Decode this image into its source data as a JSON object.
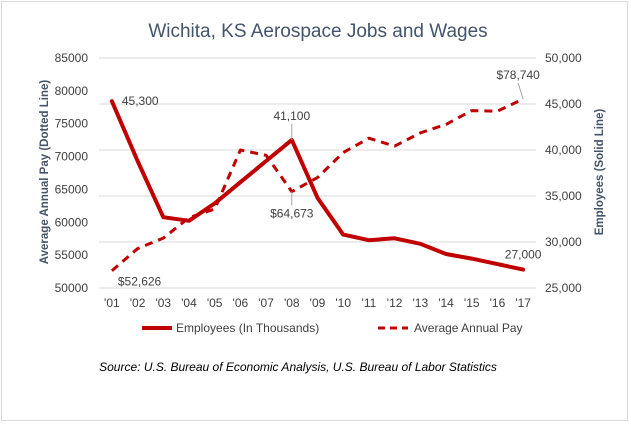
{
  "chart_data": {
    "type": "line",
    "title": "Wichita, KS Aerospace Jobs and Wages",
    "categories": [
      "'01",
      "'02",
      "'03",
      "'04",
      "'05",
      "'06",
      "'07",
      "'08",
      "'09",
      "'10",
      "'11",
      "'12",
      "'13",
      "'14",
      "'15",
      "'16",
      "'17"
    ],
    "left_axis": {
      "label": "Average Annual Pay (Dotted Line)",
      "ylim": [
        50000,
        85000
      ],
      "ticks": [
        "50000",
        "55000",
        "60000",
        "65000",
        "70000",
        "75000",
        "80000",
        "85000"
      ]
    },
    "right_axis": {
      "label": "Employees (Solid Line)",
      "ylim": [
        25000,
        50000
      ],
      "ticks": [
        "25,000",
        "30,000",
        "35,000",
        "40,000",
        "45,000",
        "50,000"
      ]
    },
    "series": [
      {
        "name": "Employees (In Thousands)",
        "axis": "right",
        "style": "solid",
        "values": [
          45300,
          38800,
          32700,
          32300,
          34200,
          36500,
          38800,
          41100,
          34800,
          30800,
          30200,
          30400,
          29800,
          28700,
          28200,
          27600,
          27000
        ]
      },
      {
        "name": "Average Annual Pay",
        "axis": "left",
        "style": "dashed",
        "values": [
          52626,
          56000,
          57600,
          60700,
          62000,
          71000,
          70200,
          64673,
          66800,
          70600,
          72800,
          71600,
          73600,
          74900,
          77000,
          76900,
          78740
        ]
      }
    ],
    "data_labels": [
      {
        "series": 0,
        "index": 0,
        "text": "45,300"
      },
      {
        "series": 0,
        "index": 7,
        "text": "41,100"
      },
      {
        "series": 0,
        "index": 16,
        "text": "27,000"
      },
      {
        "series": 1,
        "index": 0,
        "text": "$52,626"
      },
      {
        "series": 1,
        "index": 7,
        "text": "$64,673"
      },
      {
        "series": 1,
        "index": 16,
        "text": "$78,740"
      }
    ],
    "grid": true,
    "legend": "bottom",
    "colors": {
      "series": "#c00000",
      "title": "#44546a",
      "axis_title": "#44546a",
      "grid": "#d9d9d9",
      "text": "#404040"
    }
  },
  "source_note": "Source: U.S. Bureau of Economic Analysis, U.S. Bureau of Labor Statistics"
}
